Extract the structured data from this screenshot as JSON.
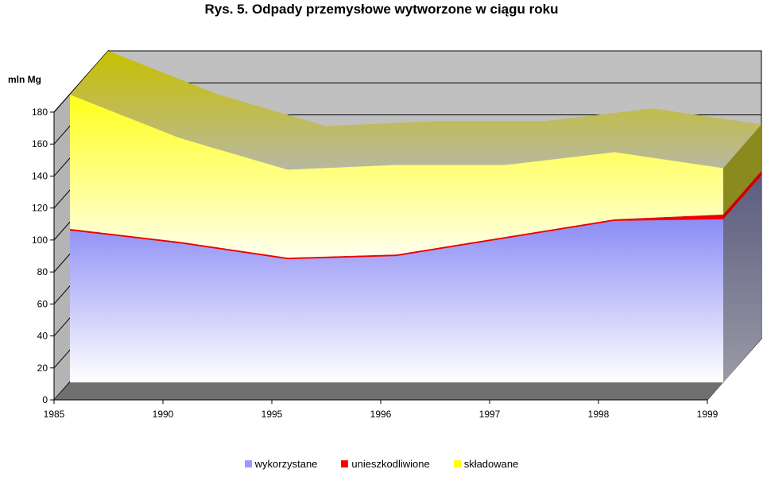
{
  "chart_data": {
    "type": "area",
    "title": "Rys. 5. Odpady przemysłowe wytworzone w ciągu roku",
    "ylabel": "mln Mg",
    "xlabel": "",
    "categories": [
      "1985",
      "1990",
      "1995",
      "1996",
      "1997",
      "1998",
      "1999"
    ],
    "ylim": [
      0,
      180
    ],
    "yticks": [
      0,
      20,
      40,
      60,
      80,
      100,
      120,
      140,
      160,
      180
    ],
    "stacked": true,
    "three_d": true,
    "grid": true,
    "legend": "bottom",
    "series": [
      {
        "name": "wykorzystane",
        "color": "#9999ff",
        "values": [
          95,
          87,
          77,
          79,
          90,
          101,
          102
        ]
      },
      {
        "name": "unieszkodliwione",
        "color": "#ff0000",
        "values": [
          1,
          1,
          1,
          1,
          1,
          1,
          3
        ]
      },
      {
        "name": "składowane",
        "color": "#ffff00",
        "values": [
          84,
          65,
          55,
          56,
          45,
          42,
          29
        ]
      }
    ]
  }
}
